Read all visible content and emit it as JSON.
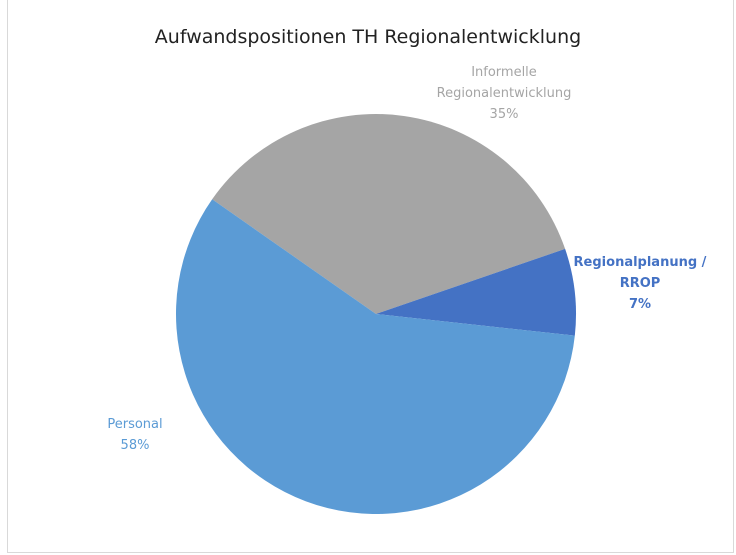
{
  "chart_data": {
    "type": "pie",
    "title": "Aufwandspositionen TH Regionalentwicklung",
    "categories": [
      "Informelle Regionalentwicklung",
      "Regionalplanung / RROP",
      "Personal"
    ],
    "values": [
      35,
      7,
      58
    ],
    "value_labels": [
      "35%",
      "7%",
      "58%"
    ],
    "colors": [
      "#a5a5a5",
      "#4472c4",
      "#5b9bd5"
    ]
  }
}
